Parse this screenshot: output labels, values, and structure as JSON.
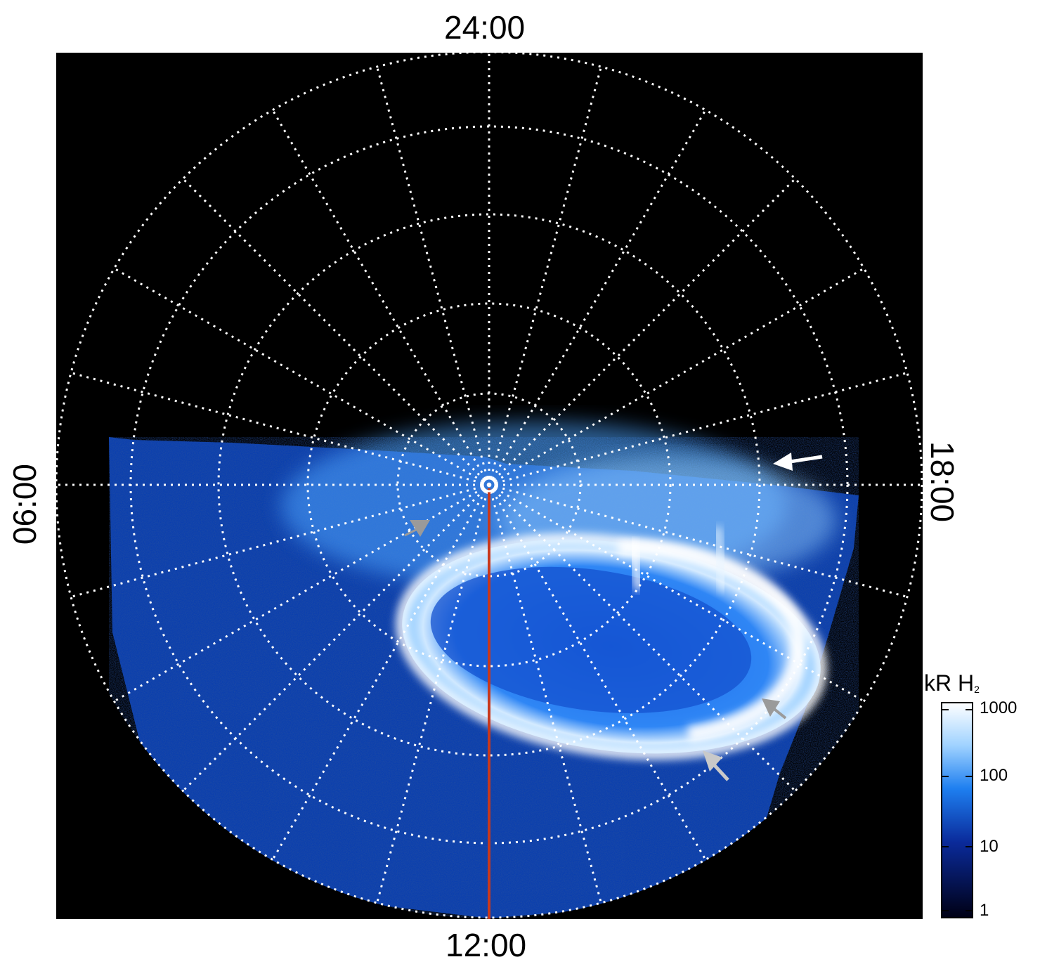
{
  "labels": {
    "top": "24:00",
    "bottom": "12:00",
    "left": "06:00",
    "right": "18:00"
  },
  "colorbar": {
    "title": "kR H",
    "title_sub": "2",
    "ticks": [
      "1000",
      "100",
      "10",
      "1"
    ],
    "colors": [
      "#ffffff",
      "#9fd2ff",
      "#1e7ff0",
      "#0a2a9a",
      "#000014"
    ]
  },
  "colors": {
    "background": "#000000",
    "grid": "#ffffff",
    "meridian": "#c8381c",
    "aurora_bright": "#ffffff",
    "aurora_mid": "#5fb2ff",
    "aurora_dark": "#0d4fc8",
    "arrow_white": "#ffffff",
    "arrow_gray": "#9a9a9a"
  }
}
